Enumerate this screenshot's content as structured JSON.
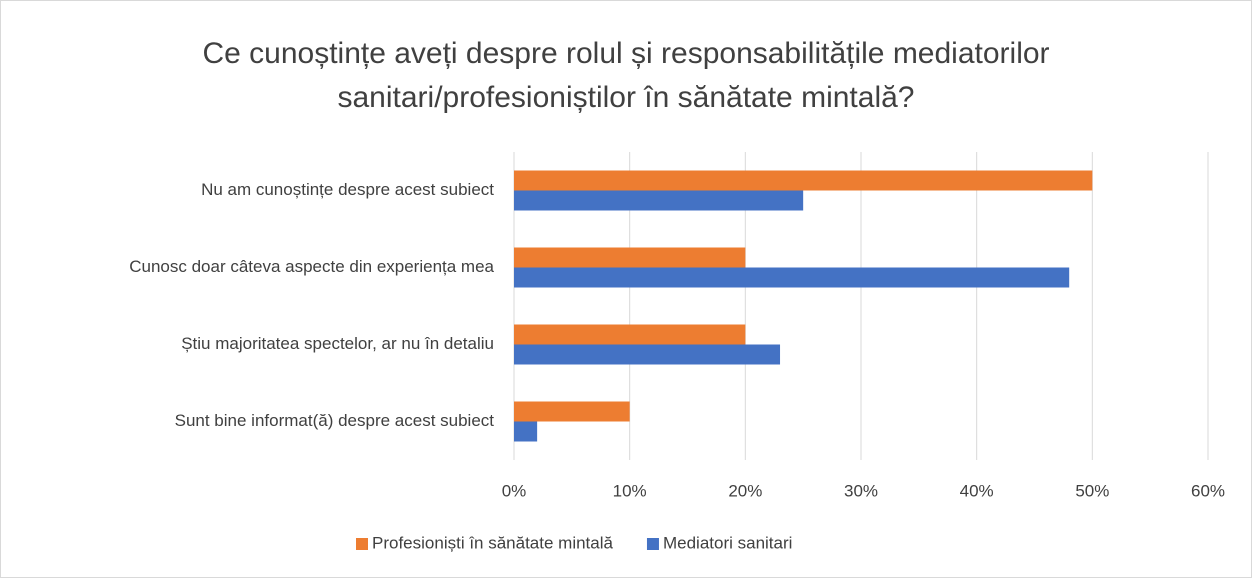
{
  "chart_data": {
    "type": "hbar",
    "title": "Ce cunoștințe aveți despre rolul și responsabilitățile mediatorilor sanitari/profesioniștilor în sănătate mintală?",
    "categories": [
      "Nu am cunoștințe despre acest subiect",
      "Cunosc doar câteva aspecte din experiența mea",
      "Știu majoritatea spectelor, ar nu în detaliu",
      "Sunt bine informat(ă) despre acest subiect"
    ],
    "series": [
      {
        "name": "Profesioniști în sănătate mintală",
        "color": "#ed7d31",
        "values": [
          50,
          20,
          20,
          10
        ]
      },
      {
        "name": "Mediatori sanitari",
        "color": "#4472c4",
        "values": [
          25,
          48,
          23,
          2
        ]
      }
    ],
    "xlim": [
      0,
      60
    ],
    "xticks": [
      {
        "value": 0,
        "label": "0%"
      },
      {
        "value": 10,
        "label": "10%"
      },
      {
        "value": 20,
        "label": "20%"
      },
      {
        "value": 30,
        "label": "30%"
      },
      {
        "value": 40,
        "label": "40%"
      },
      {
        "value": 50,
        "label": "50%"
      },
      {
        "value": 60,
        "label": "60%"
      }
    ],
    "grid": true,
    "legend": "bottom"
  }
}
